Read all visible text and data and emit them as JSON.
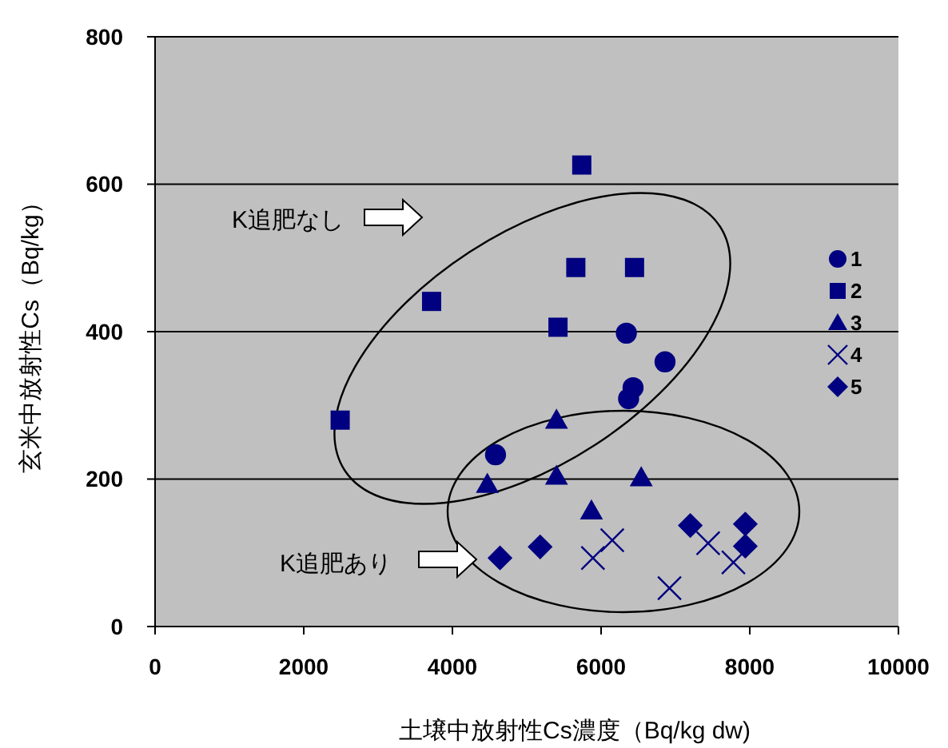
{
  "chart_data": {
    "type": "scatter",
    "xlabel": "土壌中放射性Cs濃度（Bq/kg dw)",
    "ylabel": "玄米中放射性Cs（Bq/kg）",
    "xlim": [
      0,
      10000
    ],
    "xticks": [
      0,
      2000,
      4000,
      6000,
      8000,
      10000
    ],
    "ylim": [
      0,
      800
    ],
    "yticks": [
      0,
      200,
      400,
      600,
      800
    ],
    "grid": "y",
    "legend": "right",
    "annotations": [
      "K追肥なし",
      "K追肥あり"
    ],
    "series": [
      {
        "name": "1",
        "color": "#000080",
        "marker": "circle",
        "x": [
          6340,
          6860,
          6430,
          6370,
          4580
        ],
        "values": [
          398,
          359,
          324,
          309,
          233
        ]
      },
      {
        "name": "2",
        "color": "#000080",
        "marker": "square",
        "x": [
          2490,
          3720,
          5740,
          5660,
          6450,
          5420
        ],
        "values": [
          280,
          441,
          626,
          487,
          487,
          406
        ]
      },
      {
        "name": "3",
        "color": "#000080",
        "marker": "triangle",
        "x": [
          5400,
          4470,
          5400,
          6540,
          5870
        ],
        "values": [
          280,
          193,
          204,
          202,
          157
        ]
      },
      {
        "name": "4",
        "color": "#000080",
        "marker": "cross",
        "x": [
          6150,
          5890,
          6920,
          7440,
          7780
        ],
        "values": [
          117,
          93,
          52,
          113,
          87
        ]
      },
      {
        "name": "5",
        "color": "#000080",
        "marker": "diamond",
        "x": [
          4640,
          5180,
          7200,
          7940,
          7940
        ],
        "values": [
          93,
          108,
          137,
          139,
          109
        ]
      }
    ]
  }
}
